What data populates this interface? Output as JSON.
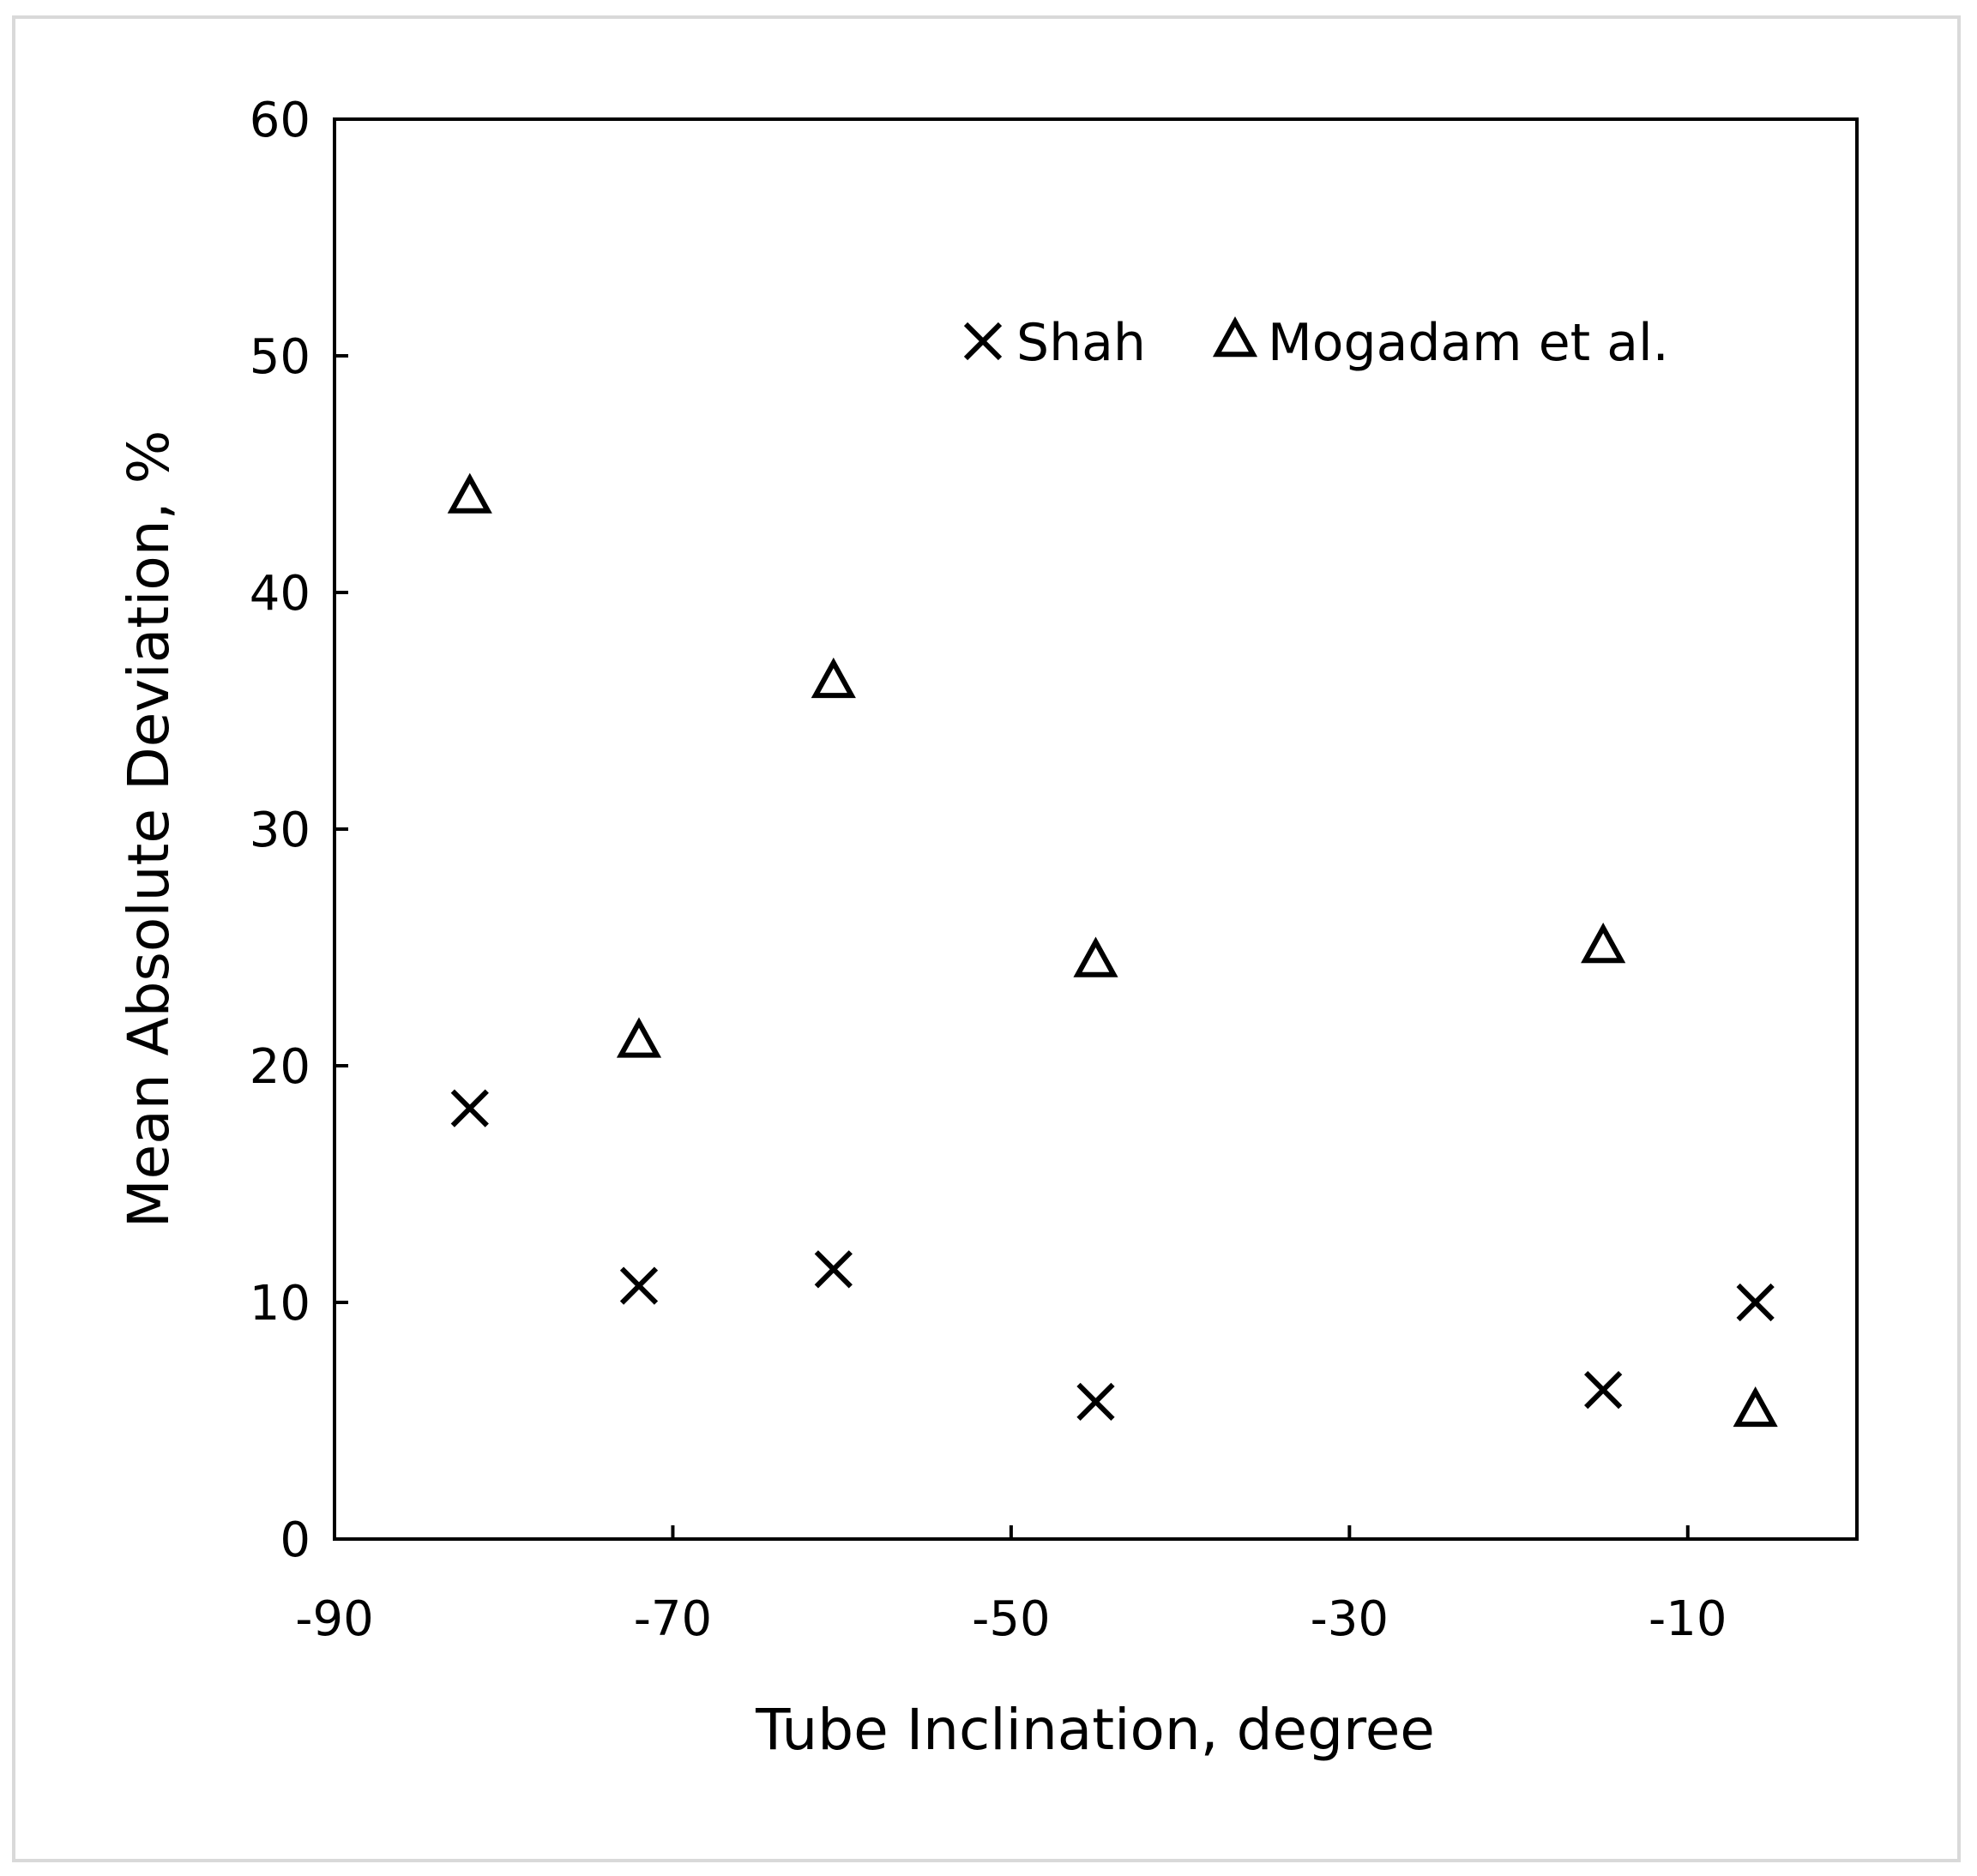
{
  "chart_data": {
    "type": "scatter",
    "title": "",
    "xlabel": "Tube Inclination, degree",
    "ylabel": "Mean Absolute Deviation, %",
    "xlim": [
      -90,
      0
    ],
    "ylim": [
      0,
      60
    ],
    "x_ticks": [
      -90,
      -70,
      -50,
      -30,
      -10
    ],
    "x_tick_labels": [
      "-90",
      "-70",
      "-50",
      "-30",
      "-10"
    ],
    "y_ticks": [
      0,
      10,
      20,
      30,
      40,
      50,
      60
    ],
    "y_tick_labels": [
      "0",
      "10",
      "20",
      "30",
      "40",
      "50",
      "60"
    ],
    "grid": false,
    "legend_position": "top-right",
    "series": [
      {
        "name": "Shah",
        "marker": "x",
        "color": "#000000",
        "x": [
          -82,
          -72,
          -60.5,
          -45,
          -15,
          -6
        ],
        "y": [
          18.2,
          10.7,
          11.4,
          5.8,
          6.3,
          10.0
        ]
      },
      {
        "name": "Mogadam et al.",
        "marker": "triangle",
        "color": "#000000",
        "x": [
          -82,
          -72,
          -60.5,
          -45,
          -15,
          -6
        ],
        "y": [
          44.0,
          21.0,
          36.2,
          24.4,
          25.0,
          5.4
        ]
      }
    ]
  }
}
